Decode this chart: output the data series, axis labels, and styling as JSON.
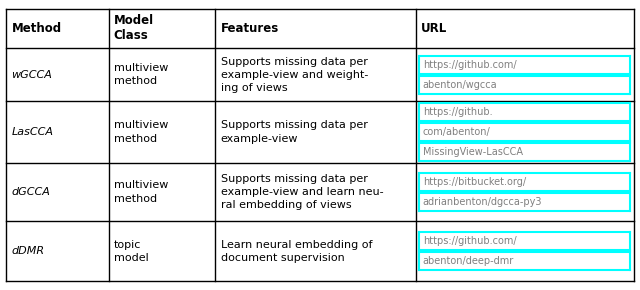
{
  "figsize": [
    6.4,
    2.9
  ],
  "dpi": 100,
  "bg_color": "#ffffff",
  "header": [
    "Method",
    "Model\nClass",
    "Features",
    "URL"
  ],
  "rows": [
    {
      "method": "wGCCA",
      "model_class": "multiview\nmethod",
      "features": "Supports missing data per\nexample-view and weight-\ning of views",
      "url_lines": [
        "https://github.com/",
        "abenton/wgcca"
      ]
    },
    {
      "method": "LasCCA",
      "model_class": "multiview\nmethod",
      "features": "Supports missing data per\nexample-view",
      "url_lines": [
        "https://github.",
        "com/abenton/",
        "MissingView-LasCCA"
      ]
    },
    {
      "method": "dGCCA",
      "model_class": "multiview\nmethod",
      "features": "Supports missing data per\nexample-view and learn neu-\nral embedding of views",
      "url_lines": [
        "https://bitbucket.org/",
        "adrianbenton/dgcca-py3"
      ]
    },
    {
      "method": "dDMR",
      "model_class": "topic\nmodel",
      "features": "Learn neural embedding of\ndocument supervision",
      "url_lines": [
        "https://github.com/",
        "abenton/deep-dmr"
      ]
    }
  ],
  "header_color": "#000000",
  "border_color": "#000000",
  "url_box_color": "#00ffff",
  "url_text_color": "#808080",
  "method_color": "#000000",
  "body_color": "#000000"
}
